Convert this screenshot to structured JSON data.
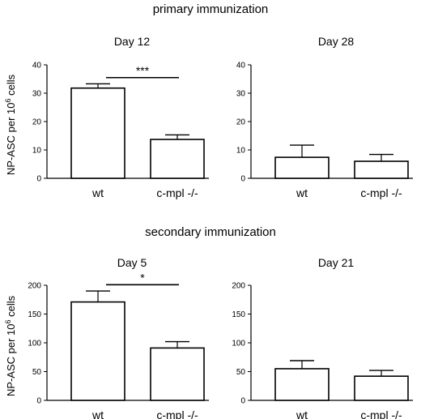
{
  "sections": [
    {
      "title": "primary immunization"
    },
    {
      "title": "secondary immunization"
    }
  ],
  "ylabel": {
    "main": "NP-ASC per 10",
    "sup": "6",
    "tail": " cells"
  },
  "chart_data": [
    {
      "type": "bar",
      "title": "Day 12",
      "categories": [
        "wt",
        "c-mpl -/-"
      ],
      "values": [
        31.8,
        13.7
      ],
      "errors": [
        1.5,
        1.6
      ],
      "ylim": [
        0,
        40
      ],
      "yticks": [
        "0",
        "10",
        "20",
        "30",
        "40"
      ],
      "ylabel": "NP-ASC per 10^6 cells",
      "significance": "***"
    },
    {
      "type": "bar",
      "title": "Day 28",
      "categories": [
        "wt",
        "c-mpl -/-"
      ],
      "values": [
        7.4,
        6.0
      ],
      "errors": [
        4.3,
        2.4
      ],
      "ylim": [
        0,
        40
      ],
      "yticks": [
        "0",
        "10",
        "20",
        "30",
        "40"
      ],
      "ylabel": "",
      "significance": ""
    },
    {
      "type": "bar",
      "title": "Day 5",
      "categories": [
        "wt",
        "c-mpl -/-"
      ],
      "values": [
        171,
        91
      ],
      "errors": [
        19,
        11
      ],
      "ylim": [
        0,
        200
      ],
      "yticks": [
        "0",
        "50",
        "100",
        "150",
        "200"
      ],
      "ylabel": "NP-ASC per 10^6 cells",
      "significance": "*"
    },
    {
      "type": "bar",
      "title": "Day 21",
      "categories": [
        "wt",
        "c-mpl -/-"
      ],
      "values": [
        55,
        42
      ],
      "errors": [
        14,
        10
      ],
      "ylim": [
        0,
        200
      ],
      "yticks": [
        "0",
        "50",
        "100",
        "150",
        "200"
      ],
      "ylabel": "",
      "significance": ""
    }
  ]
}
